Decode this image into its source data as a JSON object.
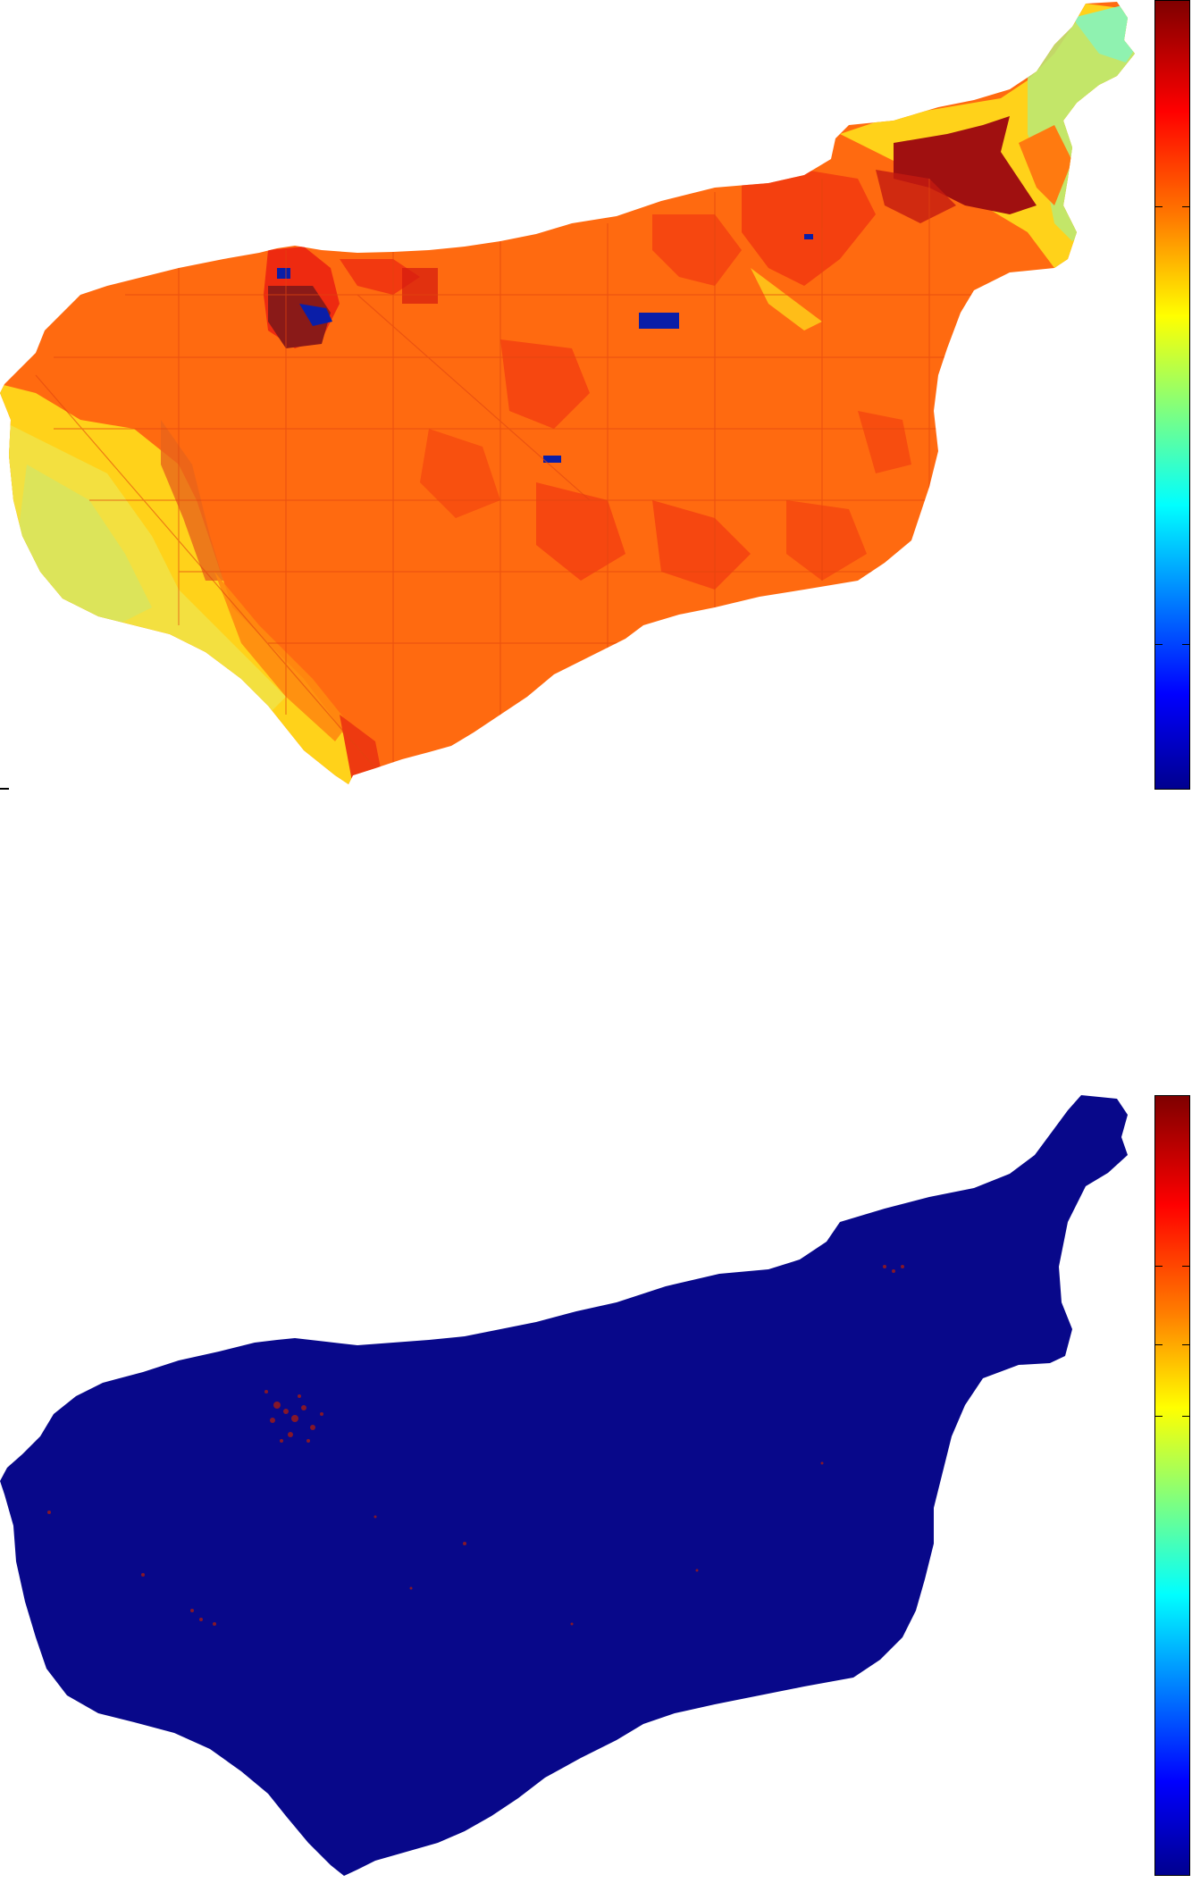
{
  "figure": {
    "panels": [
      {
        "name": "top-map",
        "colormap": "jet",
        "dominant_color": "#ff6a10",
        "colors": {
          "orange": "#ff6a10",
          "red": "#ee2a10",
          "dark_red": "#a01010",
          "yellow": "#ffd21a",
          "light_yellow": "#f8e25a",
          "cyan": "#8ff2b0",
          "blue": "#0a1ea8"
        },
        "colorbar": {
          "ticks_count": 4
        }
      },
      {
        "name": "bottom-map",
        "colormap": "jet",
        "dominant_color": "#08088a",
        "colors": {
          "navy": "#08088a",
          "dark_red": "#9a1a1a"
        },
        "colorbar": {
          "ticks_count": 3
        }
      }
    ]
  }
}
